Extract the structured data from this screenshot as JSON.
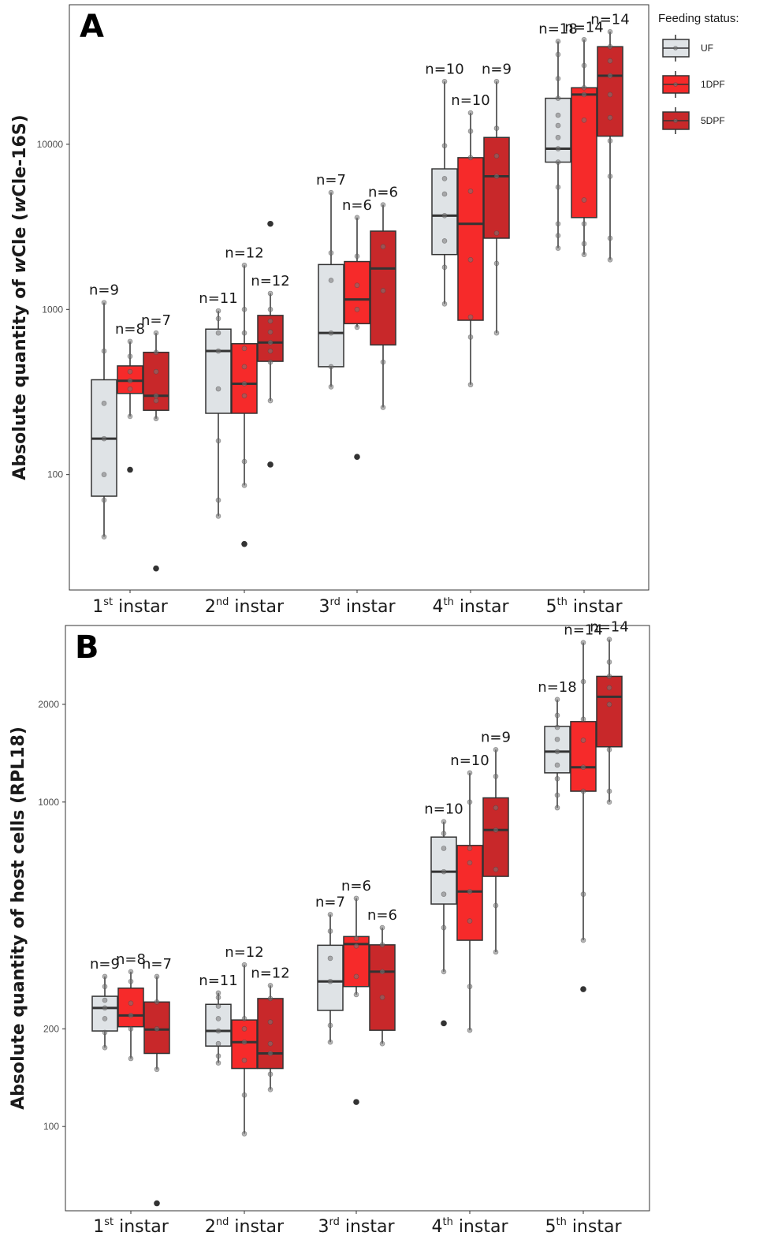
{
  "legend": {
    "title": "Feeding status:",
    "items": [
      {
        "label": "UF",
        "color": "#dfe3e6"
      },
      {
        "label": "1DPF",
        "color": "#f62a2a"
      },
      {
        "label": "5DPF",
        "color": "#c8282a"
      }
    ]
  },
  "chart_data": [
    {
      "type": "boxplot",
      "panel_label": "A",
      "ylabel_parts": [
        "Absolute quantity of ",
        "w",
        "Cle (",
        "w",
        "Cle-16S)"
      ],
      "yscale": "log",
      "ylim": [
        20,
        70000
      ],
      "yticks": [
        100,
        1000,
        10000
      ],
      "ytick_labels": [
        "100",
        "1000",
        "10000"
      ],
      "categories": [
        {
          "base": "1",
          "sup": "st",
          "rest": " instar"
        },
        {
          "base": "2",
          "sup": "nd",
          "rest": " instar"
        },
        {
          "base": "3",
          "sup": "rd",
          "rest": " instar"
        },
        {
          "base": "4",
          "sup": "th",
          "rest": " instar"
        },
        {
          "base": "5",
          "sup": "th",
          "rest": " instar"
        }
      ],
      "grid": true,
      "legend_position": "right",
      "series": [
        {
          "name": "UF",
          "boxes": [
            {
              "n": "n=9",
              "lo": 42,
              "q1": 74,
              "med": 165,
              "q3": 375,
              "hi": 1100,
              "out": [],
              "pts": [
                42,
                70,
                100,
                165,
                270,
                560,
                1100
              ]
            },
            {
              "n": "n=11",
              "lo": 56,
              "q1": 235,
              "med": 560,
              "q3": 760,
              "hi": 980,
              "out": [],
              "pts": [
                56,
                70,
                160,
                330,
                560,
                720,
                880,
                980
              ]
            },
            {
              "n": "n=7",
              "lo": 340,
              "q1": 450,
              "med": 720,
              "q3": 1870,
              "hi": 5100,
              "out": [],
              "pts": [
                340,
                450,
                720,
                1500,
                2200,
                5100
              ]
            },
            {
              "n": "n=10",
              "lo": 1080,
              "q1": 2150,
              "med": 3700,
              "q3": 7100,
              "hi": 24000,
              "out": [],
              "pts": [
                1080,
                1800,
                2600,
                3700,
                5000,
                6200,
                9800,
                24000
              ]
            },
            {
              "n": "n=18",
              "lo": 2350,
              "q1": 7800,
              "med": 9400,
              "q3": 19000,
              "hi": 42000,
              "out": [],
              "pts": [
                2350,
                2800,
                3300,
                5500,
                7800,
                9400,
                11000,
                13000,
                15000,
                19000,
                25000,
                35000,
                42000
              ]
            }
          ]
        },
        {
          "name": "1DPF",
          "boxes": [
            {
              "n": "n=8",
              "lo": 225,
              "q1": 310,
              "med": 370,
              "q3": 455,
              "hi": 640,
              "out": [
                107
              ],
              "pts": [
                225,
                330,
                370,
                420,
                520,
                640
              ]
            },
            {
              "n": "n=12",
              "lo": 86,
              "q1": 235,
              "med": 355,
              "q3": 620,
              "hi": 1850,
              "out": [
                38
              ],
              "pts": [
                86,
                120,
                300,
                355,
                450,
                580,
                720,
                1000,
                1850
              ]
            },
            {
              "n": "n=6",
              "lo": 780,
              "q1": 820,
              "med": 1150,
              "q3": 1950,
              "hi": 3600,
              "out": [
                128
              ],
              "pts": [
                780,
                1000,
                1400,
                2100,
                3600
              ]
            },
            {
              "n": "n=10",
              "lo": 350,
              "q1": 860,
              "med": 3300,
              "q3": 8300,
              "hi": 15500,
              "out": [],
              "pts": [
                350,
                680,
                900,
                2000,
                5200,
                8300,
                12000,
                15500
              ]
            },
            {
              "n": "n=14",
              "lo": 2150,
              "q1": 3600,
              "med": 20000,
              "q3": 22000,
              "hi": 43000,
              "out": [],
              "pts": [
                2150,
                2500,
                3300,
                4600,
                14000,
                20000,
                22000,
                30000,
                43000
              ]
            }
          ]
        },
        {
          "name": "5DPF",
          "boxes": [
            {
              "n": "n=7",
              "lo": 218,
              "q1": 245,
              "med": 300,
              "q3": 550,
              "hi": 720,
              "out": [
                27
              ],
              "pts": [
                218,
                280,
                300,
                420,
                550,
                720
              ]
            },
            {
              "n": "n=12",
              "lo": 280,
              "q1": 485,
              "med": 630,
              "q3": 920,
              "hi": 1250,
              "out": [
                115,
                3300
              ],
              "pts": [
                280,
                480,
                560,
                630,
                730,
                850,
                1000,
                1250
              ]
            },
            {
              "n": "n=6",
              "lo": 255,
              "q1": 610,
              "med": 1770,
              "q3": 2980,
              "hi": 4300,
              "out": [],
              "pts": [
                255,
                480,
                1300,
                2400,
                4300
              ]
            },
            {
              "n": "n=9",
              "lo": 720,
              "q1": 2700,
              "med": 6400,
              "q3": 11000,
              "hi": 24000,
              "out": [],
              "pts": [
                720,
                1900,
                2900,
                6400,
                8500,
                12500,
                24000
              ]
            },
            {
              "n": "n=14",
              "lo": 2000,
              "q1": 11200,
              "med": 26000,
              "q3": 39000,
              "hi": 48000,
              "out": [],
              "pts": [
                2000,
                2700,
                6400,
                10500,
                14500,
                20000,
                26000,
                32000,
                39000,
                48000
              ]
            }
          ]
        }
      ]
    },
    {
      "type": "boxplot",
      "panel_label": "B",
      "ylabel_parts": [
        "Absolute quantity of host cells (RPL18)"
      ],
      "yscale": "log",
      "ylim": [
        55,
        3500
      ],
      "yticks": [
        100,
        200,
        1000,
        2000
      ],
      "ytick_labels": [
        "100",
        "200",
        "1000",
        "2000"
      ],
      "categories": [
        {
          "base": "1",
          "sup": "st",
          "rest": " instar"
        },
        {
          "base": "2",
          "sup": "nd",
          "rest": " instar"
        },
        {
          "base": "3",
          "sup": "rd",
          "rest": " instar"
        },
        {
          "base": "4",
          "sup": "th",
          "rest": " instar"
        },
        {
          "base": "5",
          "sup": "th",
          "rest": " instar"
        }
      ],
      "grid": true,
      "series": [
        {
          "name": "UF",
          "boxes": [
            {
              "n": "n=9",
              "lo": 175,
              "q1": 197,
              "med": 232,
              "q3": 252,
              "hi": 290,
              "out": [],
              "pts": [
                175,
                195,
                215,
                232,
                245,
                270,
                290
              ]
            },
            {
              "n": "n=11",
              "lo": 157,
              "q1": 177,
              "med": 197,
              "q3": 238,
              "hi": 258,
              "out": [],
              "pts": [
                157,
                165,
                180,
                197,
                215,
                235,
                250,
                258
              ]
            },
            {
              "n": "n=7",
              "lo": 182,
              "q1": 228,
              "med": 280,
              "q3": 362,
              "hi": 450,
              "out": [],
              "pts": [
                182,
                205,
                280,
                330,
                400,
                450
              ]
            },
            {
              "n": "n=10",
              "lo": 300,
              "q1": 485,
              "med": 610,
              "q3": 780,
              "hi": 870,
              "out": [
                208
              ],
              "pts": [
                300,
                410,
                520,
                610,
                720,
                800,
                870
              ]
            },
            {
              "n": "n=18",
              "lo": 960,
              "q1": 1230,
              "med": 1430,
              "q3": 1710,
              "hi": 2070,
              "out": [],
              "pts": [
                960,
                1050,
                1180,
                1300,
                1430,
                1560,
                1700,
                1850,
                2070
              ]
            }
          ]
        },
        {
          "name": "1DPF",
          "boxes": [
            {
              "n": "n=8",
              "lo": 162,
              "q1": 203,
              "med": 220,
              "q3": 267,
              "hi": 300,
              "out": [],
              "pts": [
                162,
                200,
                220,
                240,
                280,
                300
              ]
            },
            {
              "n": "n=12",
              "lo": 95,
              "q1": 151,
              "med": 182,
              "q3": 213,
              "hi": 315,
              "out": [],
              "pts": [
                95,
                125,
                160,
                182,
                200,
                215,
                315
              ]
            },
            {
              "n": "n=6",
              "lo": 255,
              "q1": 270,
              "med": 365,
              "q3": 385,
              "hi": 505,
              "out": [
                119
              ],
              "pts": [
                255,
                290,
                360,
                380,
                505
              ]
            },
            {
              "n": "n=10",
              "lo": 198,
              "q1": 375,
              "med": 530,
              "q3": 735,
              "hi": 1230,
              "out": [],
              "pts": [
                198,
                270,
                430,
                530,
                650,
                720,
                1000,
                1230
              ]
            },
            {
              "n": "n=14",
              "lo": 375,
              "q1": 1080,
              "med": 1280,
              "q3": 1770,
              "hi": 3100,
              "out": [
                265
              ],
              "pts": [
                375,
                520,
                1080,
                1280,
                1550,
                1800,
                2350,
                3100
              ]
            }
          ]
        },
        {
          "name": "5DPF",
          "boxes": [
            {
              "n": "n=7",
              "lo": 150,
              "q1": 168,
              "med": 199,
              "q3": 242,
              "hi": 290,
              "out": [
                58
              ],
              "pts": [
                150,
                200,
                242,
                290
              ]
            },
            {
              "n": "n=12",
              "lo": 130,
              "q1": 151,
              "med": 168,
              "q3": 248,
              "hi": 272,
              "out": [],
              "pts": [
                130,
                145,
                168,
                180,
                210,
                248,
                272
              ]
            },
            {
              "n": "n=6",
              "lo": 180,
              "q1": 198,
              "med": 300,
              "q3": 363,
              "hi": 410,
              "out": [],
              "pts": [
                180,
                250,
                300,
                363,
                410
              ]
            },
            {
              "n": "n=9",
              "lo": 345,
              "q1": 590,
              "med": 820,
              "q3": 1030,
              "hi": 1450,
              "out": [],
              "pts": [
                345,
                480,
                620,
                820,
                960,
                1200,
                1450
              ]
            },
            {
              "n": "n=14",
              "lo": 1000,
              "q1": 1480,
              "med": 2110,
              "q3": 2440,
              "hi": 3170,
              "out": [],
              "pts": [
                1000,
                1080,
                1450,
                2000,
                2250,
                2440,
                2700,
                3170
              ]
            }
          ]
        }
      ]
    }
  ]
}
